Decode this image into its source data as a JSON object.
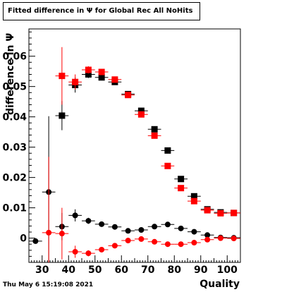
{
  "title": "Fitted difference in  Ψ  for Global Rec All NoHits",
  "footer": "Thu May  6 15:19:08 2021",
  "chart_data": {
    "type": "scatter",
    "title": "Fitted difference in  Ψ  for Global Rec All NoHits",
    "xlabel": "Quality",
    "ylabel": "difference in  Ψ",
    "xlim": [
      25,
      105
    ],
    "ylim": [
      -0.008,
      0.069
    ],
    "x_ticks": [
      30,
      40,
      50,
      60,
      70,
      80,
      90,
      100
    ],
    "y_ticks": [
      0,
      0.01,
      0.02,
      0.03,
      0.04,
      0.05,
      0.06
    ],
    "y_tick_labels": [
      "0",
      "0.01",
      "0.02",
      "0.03",
      "0.04",
      "0.05",
      "0.06"
    ],
    "grid": false,
    "legend": "none",
    "series": [
      {
        "marker": "square",
        "color": "#000000",
        "points": [
          {
            "x": 37.5,
            "y": 0.0404,
            "yerr": 0.0048
          },
          {
            "x": 42.5,
            "y": 0.0505,
            "yerr": 0.0025
          },
          {
            "x": 47.5,
            "y": 0.054,
            "yerr": 0.0012
          },
          {
            "x": 52.5,
            "y": 0.053,
            "yerr": 0.0008
          },
          {
            "x": 57.5,
            "y": 0.0515,
            "yerr": 0.0006
          },
          {
            "x": 62.5,
            "y": 0.0475,
            "yerr": 0.0005
          },
          {
            "x": 67.5,
            "y": 0.042,
            "yerr": 0.0005
          },
          {
            "x": 72.5,
            "y": 0.0359,
            "yerr": 0.0004
          },
          {
            "x": 77.5,
            "y": 0.0289,
            "yerr": 0.0004
          },
          {
            "x": 82.5,
            "y": 0.0195,
            "yerr": 0.0004
          },
          {
            "x": 87.5,
            "y": 0.0138,
            "yerr": 0.0003
          },
          {
            "x": 92.5,
            "y": 0.0095,
            "yerr": 0.0003
          },
          {
            "x": 97.5,
            "y": 0.0085,
            "yerr": 0.0003
          },
          {
            "x": 102.5,
            "y": 0.0083,
            "yerr": 0.0003
          }
        ]
      },
      {
        "marker": "square",
        "color": "#ff0000",
        "points": [
          {
            "x": 37.5,
            "y": 0.0535,
            "yerr": 0.0095
          },
          {
            "x": 42.5,
            "y": 0.0515,
            "yerr": 0.0025
          },
          {
            "x": 47.5,
            "y": 0.0555,
            "yerr": 0.0012
          },
          {
            "x": 52.5,
            "y": 0.0548,
            "yerr": 0.0008
          },
          {
            "x": 57.5,
            "y": 0.0523,
            "yerr": 0.0006
          },
          {
            "x": 62.5,
            "y": 0.0472,
            "yerr": 0.0005
          },
          {
            "x": 67.5,
            "y": 0.0408,
            "yerr": 0.0005
          },
          {
            "x": 72.5,
            "y": 0.0338,
            "yerr": 0.0004
          },
          {
            "x": 77.5,
            "y": 0.0238,
            "yerr": 0.0004
          },
          {
            "x": 82.5,
            "y": 0.0165,
            "yerr": 0.0004
          },
          {
            "x": 87.5,
            "y": 0.0122,
            "yerr": 0.0003
          },
          {
            "x": 92.5,
            "y": 0.0092,
            "yerr": 0.0003
          },
          {
            "x": 97.5,
            "y": 0.0082,
            "yerr": 0.0003
          },
          {
            "x": 102.5,
            "y": 0.0083,
            "yerr": 0.0003
          }
        ]
      },
      {
        "marker": "circle",
        "color": "#000000",
        "points": [
          {
            "x": 27.5,
            "y": -0.001,
            "yerr": 0.0003
          },
          {
            "x": 32.5,
            "y": 0.0152,
            "yerr": 0.025
          },
          {
            "x": 37.5,
            "y": 0.0038,
            "yerr": 0.0045
          },
          {
            "x": 42.5,
            "y": 0.0075,
            "yerr": 0.002
          },
          {
            "x": 47.5,
            "y": 0.0057,
            "yerr": 0.001
          },
          {
            "x": 52.5,
            "y": 0.0046,
            "yerr": 0.0007
          },
          {
            "x": 57.5,
            "y": 0.0037,
            "yerr": 0.0005
          },
          {
            "x": 62.5,
            "y": 0.0024,
            "yerr": 0.0004
          },
          {
            "x": 67.5,
            "y": 0.0027,
            "yerr": 0.0004
          },
          {
            "x": 72.5,
            "y": 0.0038,
            "yerr": 0.0004
          },
          {
            "x": 77.5,
            "y": 0.0045,
            "yerr": 0.0004
          },
          {
            "x": 82.5,
            "y": 0.0032,
            "yerr": 0.0003
          },
          {
            "x": 87.5,
            "y": 0.0021,
            "yerr": 0.0003
          },
          {
            "x": 92.5,
            "y": 0.001,
            "yerr": 0.0003
          },
          {
            "x": 97.5,
            "y": 0.0002,
            "yerr": 0.0003
          },
          {
            "x": 102.5,
            "y": 0.0001,
            "yerr": 0.0003
          }
        ]
      },
      {
        "marker": "circle",
        "color": "#ff0000",
        "points": [
          {
            "x": 32.5,
            "y": 0.0018,
            "yerr": 0.025
          },
          {
            "x": 37.5,
            "y": 0.0015,
            "yerr": 0.0085
          },
          {
            "x": 42.5,
            "y": -0.0045,
            "yerr": 0.002
          },
          {
            "x": 47.5,
            "y": -0.005,
            "yerr": 0.001
          },
          {
            "x": 52.5,
            "y": -0.0038,
            "yerr": 0.0007
          },
          {
            "x": 57.5,
            "y": -0.0025,
            "yerr": 0.0005
          },
          {
            "x": 62.5,
            "y": -0.0008,
            "yerr": 0.0004
          },
          {
            "x": 67.5,
            "y": -0.0003,
            "yerr": 0.0004
          },
          {
            "x": 72.5,
            "y": -0.0012,
            "yerr": 0.0004
          },
          {
            "x": 77.5,
            "y": -0.002,
            "yerr": 0.0004
          },
          {
            "x": 82.5,
            "y": -0.002,
            "yerr": 0.0003
          },
          {
            "x": 87.5,
            "y": -0.0015,
            "yerr": 0.0003
          },
          {
            "x": 92.5,
            "y": -0.0005,
            "yerr": 0.0003
          },
          {
            "x": 97.5,
            "y": 0.0,
            "yerr": 0.0003
          },
          {
            "x": 102.5,
            "y": -0.0001,
            "yerr": 0.0003
          }
        ]
      }
    ]
  }
}
